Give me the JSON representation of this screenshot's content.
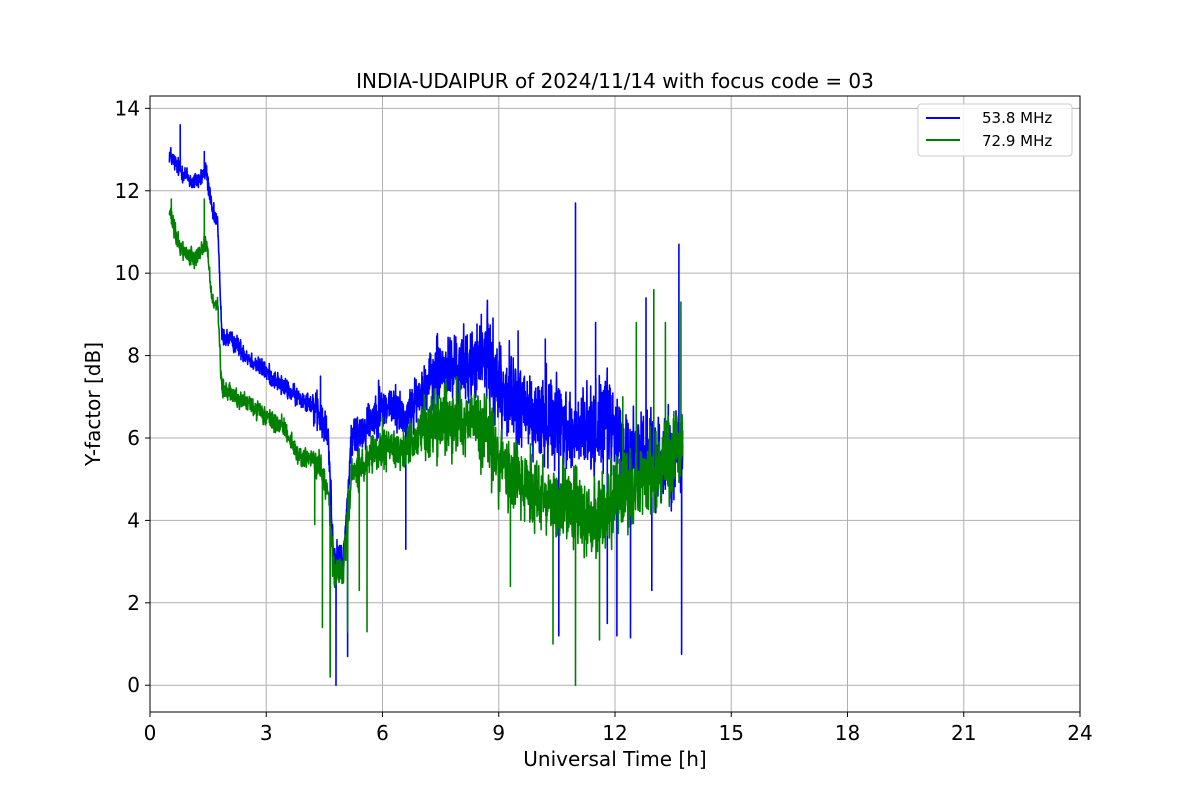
{
  "chart_data": {
    "type": "line",
    "title": "INDIA-UDAIPUR of 2024/11/14 with focus code = 03",
    "xlabel": "Universal Time [h]",
    "ylabel": "Y-factor [dB]",
    "xlim": [
      0,
      24
    ],
    "ylim": [
      -0.65,
      14.3
    ],
    "xticks": [
      0,
      3,
      6,
      9,
      12,
      15,
      18,
      21,
      24
    ],
    "yticks": [
      0,
      2,
      4,
      6,
      8,
      10,
      12,
      14
    ],
    "grid": true,
    "legend_position": "top-right",
    "series": [
      {
        "name": "53.8 MHz",
        "color": "#0000ff",
        "anchors": [
          [
            0.5,
            12.9
          ],
          [
            0.7,
            12.6
          ],
          [
            0.9,
            12.4
          ],
          [
            1.1,
            12.2
          ],
          [
            1.3,
            12.3
          ],
          [
            1.45,
            12.5
          ],
          [
            1.6,
            11.5
          ],
          [
            1.75,
            11.2
          ],
          [
            1.85,
            8.5
          ],
          [
            2.2,
            8.3
          ],
          [
            2.6,
            7.9
          ],
          [
            3.0,
            7.6
          ],
          [
            3.5,
            7.2
          ],
          [
            3.8,
            7.0
          ],
          [
            4.1,
            6.9
          ],
          [
            4.4,
            6.5
          ],
          [
            4.6,
            6.0
          ],
          [
            4.75,
            2.9
          ],
          [
            5.0,
            3.1
          ],
          [
            5.2,
            6.0
          ],
          [
            5.5,
            6.2
          ],
          [
            5.8,
            6.6
          ],
          [
            6.2,
            6.8
          ],
          [
            6.6,
            6.5
          ],
          [
            7.0,
            7.1
          ],
          [
            7.5,
            7.6
          ],
          [
            8.0,
            7.7
          ],
          [
            8.4,
            7.8
          ],
          [
            8.7,
            8.0
          ],
          [
            9.0,
            7.3
          ],
          [
            9.5,
            6.8
          ],
          [
            10.0,
            6.4
          ],
          [
            10.5,
            6.6
          ],
          [
            10.9,
            6.0
          ],
          [
            11.3,
            6.2
          ],
          [
            11.8,
            6.4
          ],
          [
            12.3,
            5.6
          ],
          [
            12.7,
            5.8
          ],
          [
            13.1,
            5.4
          ],
          [
            13.5,
            5.6
          ],
          [
            13.75,
            6.0
          ]
        ],
        "spikes": [
          [
            0.78,
            13.6
          ],
          [
            1.4,
            12.95
          ],
          [
            4.4,
            7.5
          ],
          [
            4.65,
            0.3
          ],
          [
            4.8,
            0.0
          ],
          [
            5.1,
            0.7
          ],
          [
            5.9,
            7.4
          ],
          [
            6.4,
            7.0
          ],
          [
            6.6,
            3.3
          ],
          [
            8.55,
            9.0
          ],
          [
            9.5,
            8.6
          ],
          [
            10.2,
            8.4
          ],
          [
            10.55,
            1.2
          ],
          [
            10.98,
            11.7
          ],
          [
            11.5,
            8.8
          ],
          [
            11.8,
            1.5
          ],
          [
            12.05,
            1.2
          ],
          [
            12.4,
            1.15
          ],
          [
            12.8,
            9.4
          ],
          [
            12.95,
            2.3
          ],
          [
            13.65,
            10.7
          ],
          [
            13.72,
            0.75
          ]
        ],
        "noise": [
          0.35,
          0.35,
          0.7,
          0.8,
          1.3,
          1.6
        ],
        "noise_breaks": [
          1.9,
          4.2,
          5.1,
          7.0,
          8.5
        ]
      },
      {
        "name": "72.9 MHz",
        "color": "#008000",
        "anchors": [
          [
            0.5,
            11.5
          ],
          [
            0.7,
            10.8
          ],
          [
            0.9,
            10.5
          ],
          [
            1.1,
            10.4
          ],
          [
            1.3,
            10.5
          ],
          [
            1.45,
            10.8
          ],
          [
            1.6,
            9.4
          ],
          [
            1.75,
            9.2
          ],
          [
            1.85,
            7.2
          ],
          [
            2.2,
            7.0
          ],
          [
            2.6,
            6.8
          ],
          [
            3.0,
            6.5
          ],
          [
            3.5,
            6.2
          ],
          [
            3.8,
            5.6
          ],
          [
            4.1,
            5.5
          ],
          [
            4.4,
            5.3
          ],
          [
            4.6,
            4.6
          ],
          [
            4.75,
            2.6
          ],
          [
            5.0,
            2.8
          ],
          [
            5.2,
            5.1
          ],
          [
            5.5,
            5.3
          ],
          [
            5.8,
            5.6
          ],
          [
            6.2,
            5.8
          ],
          [
            6.6,
            5.7
          ],
          [
            7.0,
            6.2
          ],
          [
            7.5,
            6.4
          ],
          [
            8.0,
            6.5
          ],
          [
            8.4,
            6.4
          ],
          [
            8.7,
            6.1
          ],
          [
            9.0,
            5.4
          ],
          [
            9.5,
            5.0
          ],
          [
            10.0,
            4.7
          ],
          [
            10.5,
            4.5
          ],
          [
            10.9,
            4.3
          ],
          [
            11.3,
            4.0
          ],
          [
            11.8,
            4.3
          ],
          [
            12.3,
            4.6
          ],
          [
            12.7,
            5.0
          ],
          [
            13.1,
            5.2
          ],
          [
            13.5,
            5.6
          ],
          [
            13.75,
            6.0
          ]
        ],
        "spikes": [
          [
            0.55,
            11.8
          ],
          [
            1.4,
            11.8
          ],
          [
            4.25,
            3.9
          ],
          [
            4.45,
            1.4
          ],
          [
            4.65,
            0.2
          ],
          [
            5.1,
            1.3
          ],
          [
            5.4,
            2.3
          ],
          [
            5.6,
            1.3
          ],
          [
            6.0,
            6.5
          ],
          [
            7.6,
            7.3
          ],
          [
            9.3,
            2.4
          ],
          [
            10.4,
            1.0
          ],
          [
            10.98,
            0.0
          ],
          [
            11.6,
            1.1
          ],
          [
            12.2,
            7.0
          ],
          [
            12.55,
            8.8
          ],
          [
            13.0,
            9.6
          ],
          [
            13.3,
            8.8
          ],
          [
            13.7,
            9.3
          ],
          [
            13.75,
            2.6
          ]
        ],
        "noise": [
          0.35,
          0.35,
          0.6,
          0.7,
          1.2,
          1.5
        ],
        "noise_breaks": [
          1.9,
          4.2,
          5.1,
          7.0,
          8.5
        ]
      }
    ]
  }
}
